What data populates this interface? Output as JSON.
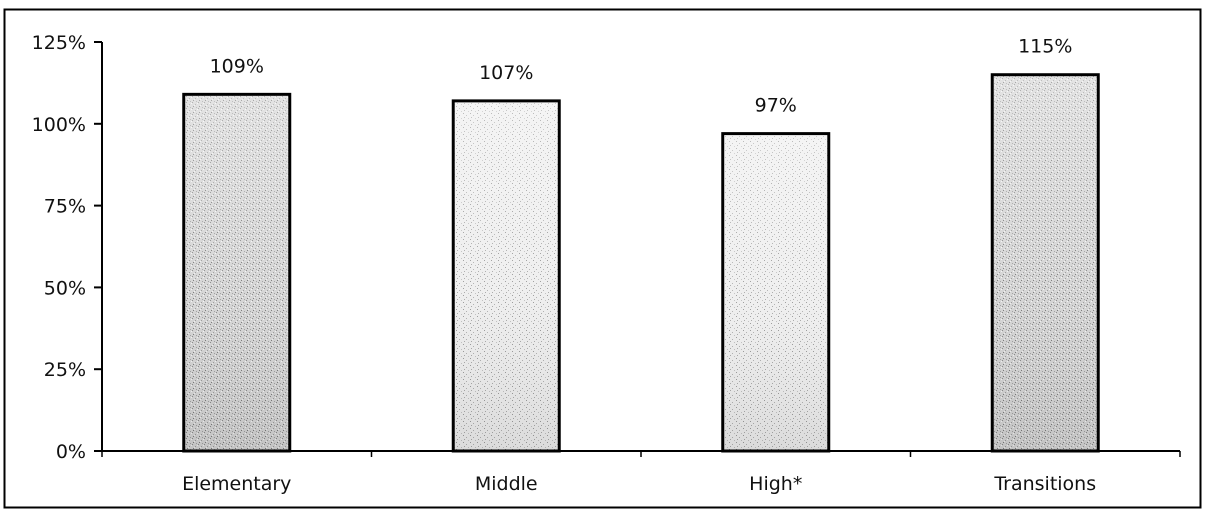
{
  "chart_data": {
    "type": "bar",
    "categories": [
      "Elementary",
      "Middle",
      "High*",
      "Transitions"
    ],
    "values": [
      109,
      107,
      97,
      115
    ],
    "value_labels": [
      "109%",
      "107%",
      "97%",
      "115%"
    ],
    "ylim": [
      0,
      125
    ],
    "yticks": [
      0,
      25,
      50,
      75,
      100,
      125
    ],
    "ytick_labels": [
      "0%",
      "25%",
      "50%",
      "75%",
      "100%",
      "125%"
    ],
    "title": "",
    "xlabel": "",
    "ylabel": "",
    "grid": false,
    "legend": "none",
    "colors": {
      "frame": "#000000",
      "bar_fill": "#c8c8c8",
      "bar_fill_light": "#e6e6e6",
      "bar_stroke": "#000000",
      "text": "#111111"
    }
  }
}
